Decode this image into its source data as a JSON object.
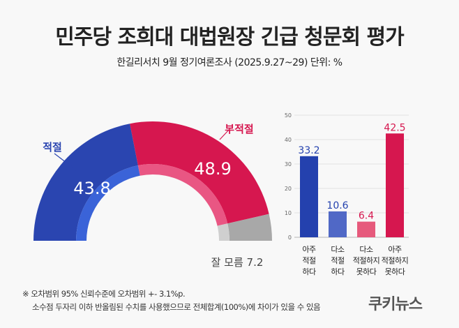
{
  "title": "민주당 조희대 대법원장 긴급 청문회 평가",
  "subtitle": "한길리서치 9월 정기여론조사 (2025.9.27~29) 단위: %",
  "chart_data": [
    {
      "type": "pie",
      "variant": "half-donut",
      "slices": [
        {
          "label": "적절",
          "value": 43.8,
          "color": "#2a45b0",
          "inner_color": "#3a63d8"
        },
        {
          "label": "부적절",
          "value": 48.9,
          "color": "#d6174f",
          "inner_color": "#e95683"
        },
        {
          "label": "잘 모름",
          "value": 7.2,
          "color": "#a8a8a8",
          "inner_color": "#cfcfcf"
        }
      ],
      "label_colors": {
        "적절": "#2a45b0",
        "부적절": "#d6174f",
        "잘 모름": "#444444"
      }
    },
    {
      "type": "bar",
      "categories": [
        [
          "아주",
          "적절",
          "하다"
        ],
        [
          "다소",
          "적절",
          "하다"
        ],
        [
          "다소",
          "적절하지",
          "못하다"
        ],
        [
          "아주",
          "적절하지",
          "못하다"
        ]
      ],
      "values": [
        33.2,
        10.6,
        6.4,
        42.5
      ],
      "colors": [
        "#2441ae",
        "#5068c6",
        "#e65a7c",
        "#d6174f"
      ],
      "label_colors": [
        "#2441ae",
        "#2441ae",
        "#d6174f",
        "#d6174f"
      ],
      "ylim": [
        0,
        50
      ],
      "yticks": [
        0,
        10,
        20,
        30,
        40,
        50
      ],
      "grid": true
    }
  ],
  "footnote": {
    "line1": "※ 오차범위 95% 신뢰수준에 오차범위 +- 3.1%p.",
    "line2": "소수점 두자리 이하 반올림된 수치를 사용했으므로 전체합계(100%)에 차이가 있을 수 있음"
  },
  "logo": "쿠키뉴스"
}
